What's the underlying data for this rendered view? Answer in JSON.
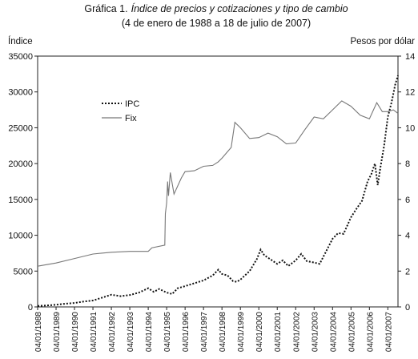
{
  "chart_data": {
    "type": "line",
    "title_prefix": "Gráfica 1.",
    "title_italic": "Índice de precios y cotizaciones y tipo de cambio",
    "subtitle": "(4 de enero de 1988 a 18 de julio de 2007)",
    "y_left_label": "Índice",
    "y_right_label": "Pesos por dólar",
    "y_left_range": [
      0,
      35000
    ],
    "y_right_range": [
      0,
      14
    ],
    "y_left_ticks": [
      "0",
      "5000",
      "10000",
      "15000",
      "20000",
      "25000",
      "30000",
      "35000"
    ],
    "y_right_ticks": [
      "0",
      "2",
      "4",
      "6",
      "8",
      "10",
      "12",
      "14"
    ],
    "x_range": [
      1988.0,
      2007.55
    ],
    "x_ticks": [
      {
        "x": 1988.0,
        "label": "04/01/1988"
      },
      {
        "x": 1989.0,
        "label": "04/01/1989"
      },
      {
        "x": 1990.0,
        "label": "04/01/1990"
      },
      {
        "x": 1991.0,
        "label": "04/01/1991"
      },
      {
        "x": 1992.0,
        "label": "04/01/1992"
      },
      {
        "x": 1993.0,
        "label": "04/01/1993"
      },
      {
        "x": 1994.0,
        "label": "04/01/1994"
      },
      {
        "x": 1995.0,
        "label": "04/01/1995"
      },
      {
        "x": 1996.0,
        "label": "04/01/1996"
      },
      {
        "x": 1997.0,
        "label": "04/01/1997"
      },
      {
        "x": 1998.0,
        "label": "04/01/1998"
      },
      {
        "x": 1999.0,
        "label": "04/01/1999"
      },
      {
        "x": 2000.0,
        "label": "04/01/2000"
      },
      {
        "x": 2001.0,
        "label": "04/01/2001"
      },
      {
        "x": 2002.0,
        "label": "04/01/2002"
      },
      {
        "x": 2003.0,
        "label": "04/01/2003"
      },
      {
        "x": 2004.0,
        "label": "04/01/2004"
      },
      {
        "x": 2005.0,
        "label": "04/01/2005"
      },
      {
        "x": 2006.0,
        "label": "04/01/2006"
      },
      {
        "x": 2007.0,
        "label": "04/01/2007"
      }
    ],
    "legend_position": "upper-left",
    "series": [
      {
        "name": "IPC",
        "axis": "left",
        "style": "dotted",
        "color": "#111111",
        "points": [
          [
            1988.0,
            150
          ],
          [
            1988.5,
            200
          ],
          [
            1989.0,
            300
          ],
          [
            1989.5,
            450
          ],
          [
            1990.0,
            550
          ],
          [
            1990.5,
            750
          ],
          [
            1991.0,
            900
          ],
          [
            1991.5,
            1300
          ],
          [
            1992.0,
            1700
          ],
          [
            1992.5,
            1500
          ],
          [
            1993.0,
            1650
          ],
          [
            1993.5,
            2000
          ],
          [
            1994.0,
            2600
          ],
          [
            1994.3,
            2100
          ],
          [
            1994.6,
            2500
          ],
          [
            1995.0,
            2000
          ],
          [
            1995.3,
            1800
          ],
          [
            1995.6,
            2600
          ],
          [
            1996.0,
            2900
          ],
          [
            1996.5,
            3300
          ],
          [
            1997.0,
            3700
          ],
          [
            1997.5,
            4400
          ],
          [
            1997.8,
            5200
          ],
          [
            1998.0,
            4600
          ],
          [
            1998.3,
            4400
          ],
          [
            1998.6,
            3600
          ],
          [
            1998.8,
            3500
          ],
          [
            1999.0,
            3800
          ],
          [
            1999.5,
            5000
          ],
          [
            1999.9,
            6700
          ],
          [
            2000.1,
            8000
          ],
          [
            2000.3,
            7200
          ],
          [
            2000.6,
            6700
          ],
          [
            2001.0,
            6000
          ],
          [
            2001.3,
            6500
          ],
          [
            2001.6,
            5700
          ],
          [
            2002.0,
            6500
          ],
          [
            2002.3,
            7400
          ],
          [
            2002.6,
            6400
          ],
          [
            2003.0,
            6200
          ],
          [
            2003.3,
            6000
          ],
          [
            2003.6,
            7500
          ],
          [
            2004.0,
            9500
          ],
          [
            2004.3,
            10300
          ],
          [
            2004.6,
            10200
          ],
          [
            2005.0,
            12500
          ],
          [
            2005.3,
            13700
          ],
          [
            2005.6,
            14800
          ],
          [
            2005.9,
            17500
          ],
          [
            2006.1,
            18500
          ],
          [
            2006.3,
            20000
          ],
          [
            2006.45,
            17000
          ],
          [
            2006.6,
            19500
          ],
          [
            2006.8,
            22500
          ],
          [
            2007.0,
            26500
          ],
          [
            2007.2,
            28500
          ],
          [
            2007.4,
            31000
          ],
          [
            2007.55,
            32300
          ]
        ]
      },
      {
        "name": "Fix",
        "axis": "right",
        "style": "solid",
        "color": "#777777",
        "points": [
          [
            1988.0,
            2.27
          ],
          [
            1989.0,
            2.45
          ],
          [
            1990.0,
            2.7
          ],
          [
            1991.0,
            2.95
          ],
          [
            1992.0,
            3.05
          ],
          [
            1993.0,
            3.1
          ],
          [
            1994.0,
            3.1
          ],
          [
            1994.2,
            3.3
          ],
          [
            1994.9,
            3.45
          ],
          [
            1994.93,
            5.2
          ],
          [
            1995.0,
            5.8
          ],
          [
            1995.05,
            7.0
          ],
          [
            1995.1,
            6.2
          ],
          [
            1995.2,
            7.5
          ],
          [
            1995.4,
            6.3
          ],
          [
            1995.8,
            7.2
          ],
          [
            1996.0,
            7.55
          ],
          [
            1996.5,
            7.6
          ],
          [
            1997.0,
            7.85
          ],
          [
            1997.5,
            7.9
          ],
          [
            1997.8,
            8.1
          ],
          [
            1998.0,
            8.3
          ],
          [
            1998.5,
            8.9
          ],
          [
            1998.7,
            10.3
          ],
          [
            1999.0,
            10.0
          ],
          [
            1999.5,
            9.4
          ],
          [
            2000.0,
            9.45
          ],
          [
            2000.5,
            9.7
          ],
          [
            2001.0,
            9.5
          ],
          [
            2001.5,
            9.1
          ],
          [
            2002.0,
            9.15
          ],
          [
            2002.5,
            9.9
          ],
          [
            2003.0,
            10.6
          ],
          [
            2003.5,
            10.5
          ],
          [
            2004.0,
            11.0
          ],
          [
            2004.5,
            11.5
          ],
          [
            2005.0,
            11.2
          ],
          [
            2005.5,
            10.7
          ],
          [
            2006.0,
            10.5
          ],
          [
            2006.4,
            11.4
          ],
          [
            2006.7,
            10.9
          ],
          [
            2007.0,
            10.9
          ],
          [
            2007.3,
            11.0
          ],
          [
            2007.55,
            10.8
          ]
        ]
      }
    ]
  }
}
